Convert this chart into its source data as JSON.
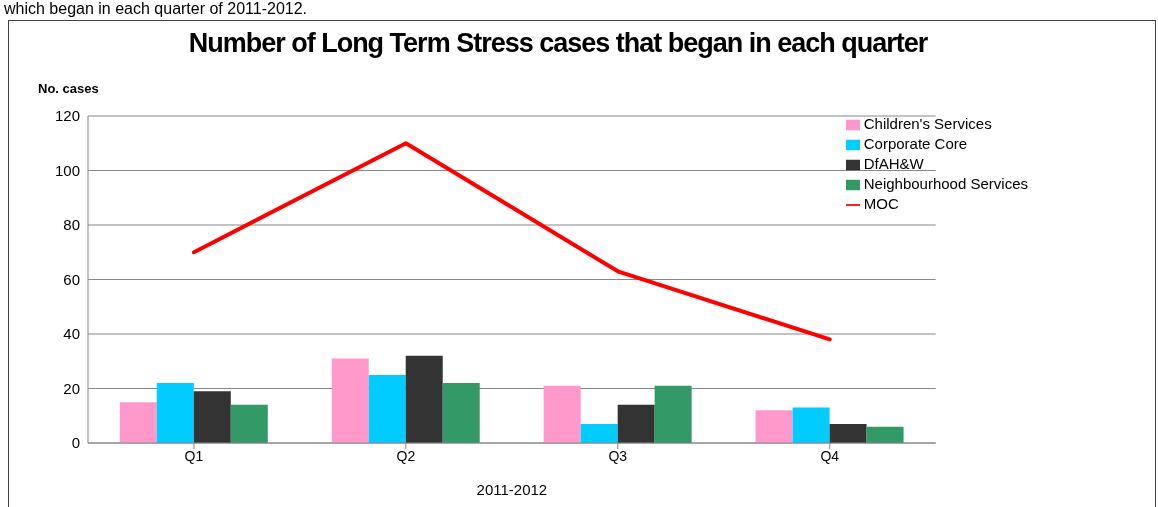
{
  "chart_data": {
    "type": "bar",
    "title": "Number of Long Term Stress cases that began in each quarter",
    "ylabel": "No. cases",
    "xlabel": "2011-2012",
    "annotations": [
      "which began in each quarter of 2011-2012."
    ],
    "categories": [
      "Q1",
      "Q2",
      "Q3",
      "Q4"
    ],
    "series": [
      {
        "name": "Children's Services",
        "color": "#ff99cc",
        "values": [
          15,
          31,
          21,
          12
        ]
      },
      {
        "name": "Corporate Core",
        "color": "#00ccff",
        "values": [
          22,
          25,
          7,
          13
        ]
      },
      {
        "name": "DfAH&W",
        "color": "#333333",
        "values": [
          19,
          32,
          14,
          7
        ]
      },
      {
        "name": "Neighbourhood Services",
        "color": "#339966",
        "values": [
          14,
          22,
          21,
          6
        ]
      },
      {
        "name": "MOC",
        "type": "line",
        "color": "#ff0000",
        "values": [
          70,
          110,
          63,
          38
        ]
      }
    ],
    "ylim": [
      0,
      120
    ],
    "yticks": [
      0,
      20,
      40,
      60,
      80,
      100,
      120
    ],
    "grid": "y",
    "legend": "top right",
    "marker": "none"
  }
}
